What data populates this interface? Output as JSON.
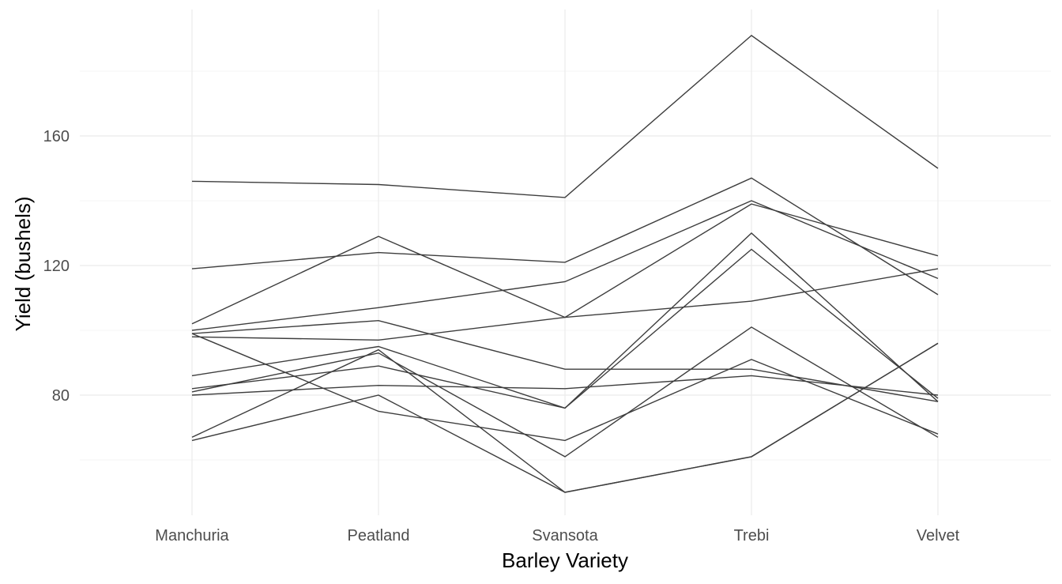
{
  "chart_data": {
    "type": "line",
    "xlabel": "Barley Variety",
    "ylabel": "Yield (bushels)",
    "categories": [
      "Manchuria",
      "Peatland",
      "Svansota",
      "Trebi",
      "Velvet"
    ],
    "y_ticks": [
      80,
      120,
      160
    ],
    "ylim": [
      48,
      203
    ],
    "grid": true,
    "legend": "none",
    "line_color": "#3d3d3d",
    "series": [
      {
        "values": [
          146,
          145,
          141,
          191,
          150
        ]
      },
      {
        "values": [
          119,
          124,
          121,
          147,
          111
        ]
      },
      {
        "values": [
          102,
          129,
          104,
          139,
          123
        ]
      },
      {
        "values": [
          100,
          107,
          115,
          140,
          116
        ]
      },
      {
        "values": [
          98,
          97,
          104,
          109,
          119
        ]
      },
      {
        "values": [
          99,
          103,
          88,
          88,
          78
        ]
      },
      {
        "values": [
          86,
          95,
          76,
          130,
          78
        ]
      },
      {
        "values": [
          82,
          89,
          76,
          125,
          79
        ]
      },
      {
        "values": [
          80,
          83,
          82,
          86,
          80
        ]
      },
      {
        "values": [
          99,
          75,
          66,
          91,
          68
        ]
      },
      {
        "values": [
          81,
          93,
          61,
          101,
          67
        ]
      },
      {
        "values": [
          67,
          94,
          50,
          61,
          96
        ]
      },
      {
        "values": [
          66,
          80,
          50,
          61,
          96
        ]
      }
    ]
  }
}
